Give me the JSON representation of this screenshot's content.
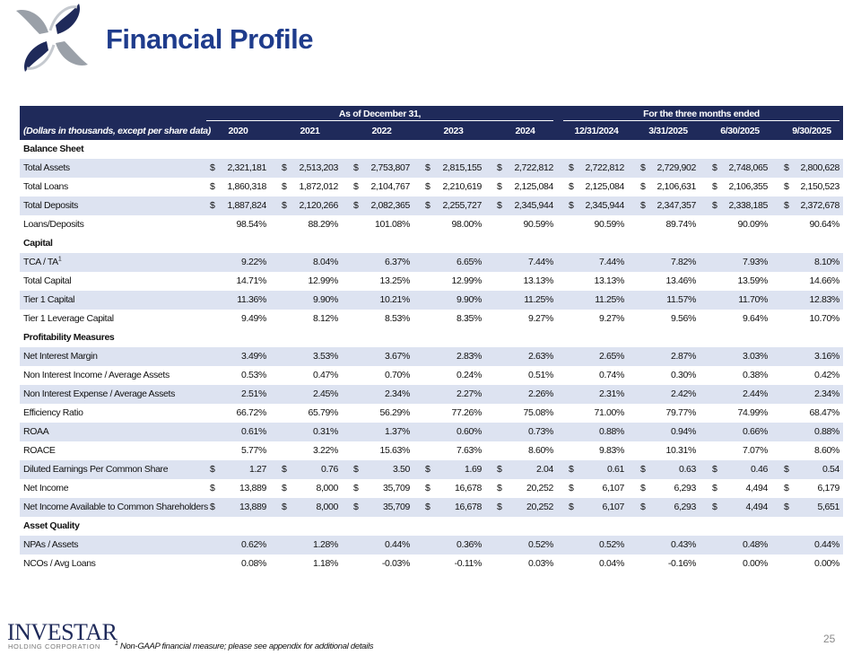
{
  "header": {
    "title": "Financial Profile"
  },
  "table": {
    "groups": [
      "As of December 31,",
      "For the three months ended"
    ],
    "label_header": "(Dollars in thousands, except per share data)",
    "columns": [
      "2020",
      "2021",
      "2022",
      "2023",
      "2024",
      "12/31/2024",
      "3/31/2025",
      "6/30/2025",
      "9/30/2025"
    ],
    "sections": [
      {
        "title": "Balance Sheet",
        "rows": [
          {
            "label": "Total Assets",
            "currency": "$",
            "cells": [
              "2,321,181",
              "2,513,203",
              "2,753,807",
              "2,815,155",
              "2,722,812",
              "2,722,812",
              "2,729,902",
              "2,748,065",
              "2,800,628"
            ]
          },
          {
            "label": "Total Loans",
            "currency": "$",
            "cells": [
              "1,860,318",
              "1,872,012",
              "2,104,767",
              "2,210,619",
              "2,125,084",
              "2,125,084",
              "2,106,631",
              "2,106,355",
              "2,150,523"
            ]
          },
          {
            "label": "Total Deposits",
            "currency": "$",
            "cells": [
              "1,887,824",
              "2,120,266",
              "2,082,365",
              "2,255,727",
              "2,345,944",
              "2,345,944",
              "2,347,357",
              "2,338,185",
              "2,372,678"
            ]
          },
          {
            "label": "Loans/Deposits",
            "cells": [
              "98.54%",
              "88.29%",
              "101.08%",
              "98.00%",
              "90.59%",
              "90.59%",
              "89.74%",
              "90.09%",
              "90.64%"
            ]
          }
        ]
      },
      {
        "title": "Capital",
        "rows": [
          {
            "label": "TCA / TA",
            "note": "1",
            "cells": [
              "9.22%",
              "8.04%",
              "6.37%",
              "6.65%",
              "7.44%",
              "7.44%",
              "7.82%",
              "7.93%",
              "8.10%"
            ]
          },
          {
            "label": "Total Capital",
            "cells": [
              "14.71%",
              "12.99%",
              "13.25%",
              "12.99%",
              "13.13%",
              "13.13%",
              "13.46%",
              "13.59%",
              "14.66%"
            ]
          },
          {
            "label": "Tier 1 Capital",
            "cells": [
              "11.36%",
              "9.90%",
              "10.21%",
              "9.90%",
              "11.25%",
              "11.25%",
              "11.57%",
              "11.70%",
              "12.83%"
            ]
          },
          {
            "label": "Tier 1 Leverage Capital",
            "cells": [
              "9.49%",
              "8.12%",
              "8.53%",
              "8.35%",
              "9.27%",
              "9.27%",
              "9.56%",
              "9.64%",
              "10.70%"
            ]
          }
        ]
      },
      {
        "title": "Profitability Measures",
        "rows": [
          {
            "label": "Net Interest Margin",
            "cells": [
              "3.49%",
              "3.53%",
              "3.67%",
              "2.83%",
              "2.63%",
              "2.65%",
              "2.87%",
              "3.03%",
              "3.16%"
            ]
          },
          {
            "label": "Non Interest Income / Average Assets",
            "cells": [
              "0.53%",
              "0.47%",
              "0.70%",
              "0.24%",
              "0.51%",
              "0.74%",
              "0.30%",
              "0.38%",
              "0.42%"
            ]
          },
          {
            "label": "Non Interest Expense / Average Assets",
            "cells": [
              "2.51%",
              "2.45%",
              "2.34%",
              "2.27%",
              "2.26%",
              "2.31%",
              "2.42%",
              "2.44%",
              "2.34%"
            ]
          },
          {
            "label": "Efficiency Ratio",
            "cells": [
              "66.72%",
              "65.79%",
              "56.29%",
              "77.26%",
              "75.08%",
              "71.00%",
              "79.77%",
              "74.99%",
              "68.47%"
            ]
          },
          {
            "label": "ROAA",
            "cells": [
              "0.61%",
              "0.31%",
              "1.37%",
              "0.60%",
              "0.73%",
              "0.88%",
              "0.94%",
              "0.66%",
              "0.88%"
            ]
          },
          {
            "label": "ROACE",
            "cells": [
              "5.77%",
              "3.22%",
              "15.63%",
              "7.63%",
              "8.60%",
              "9.83%",
              "10.31%",
              "7.07%",
              "8.60%"
            ]
          },
          {
            "label": "Diluted Earnings Per Common Share",
            "currency": "$",
            "cells": [
              "1.27",
              "0.76",
              "3.50",
              "1.69",
              "2.04",
              "0.61",
              "0.63",
              "0.46",
              "0.54"
            ]
          },
          {
            "label": "Net Income",
            "currency": "$",
            "cells": [
              "13,889",
              "8,000",
              "35,709",
              "16,678",
              "20,252",
              "6,107",
              "6,293",
              "4,494",
              "6,179"
            ]
          },
          {
            "label": "Net Income Available to Common Shareholders",
            "currency": "$",
            "cells": [
              "13,889",
              "8,000",
              "35,709",
              "16,678",
              "20,252",
              "6,107",
              "6,293",
              "4,494",
              "5,651"
            ]
          }
        ]
      },
      {
        "title": "Asset Quality",
        "rows": [
          {
            "label": "NPAs / Assets",
            "cells": [
              "0.62%",
              "1.28%",
              "0.44%",
              "0.36%",
              "0.52%",
              "0.52%",
              "0.43%",
              "0.48%",
              "0.44%"
            ]
          },
          {
            "label": "NCOs / Avg Loans",
            "cells": [
              "0.08%",
              "1.18%",
              "-0.03%",
              "-0.11%",
              "0.03%",
              "0.04%",
              "-0.16%",
              "0.00%",
              "0.00%"
            ]
          }
        ]
      }
    ]
  },
  "footnote": {
    "note": "1",
    "text": "Non-GAAP financial measure; please see appendix for additional details"
  },
  "page_number": "25",
  "logo": {
    "name": "INVESTAR",
    "subtitle": "HOLDING CORPORATION"
  }
}
